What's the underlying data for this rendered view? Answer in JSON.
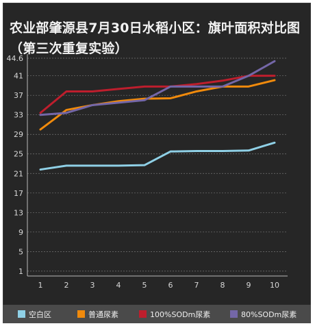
{
  "chart_data": {
    "type": "line",
    "title": "农业部肇源县7月30日水稻小区：旗叶面积对比图（第三次重复实验）",
    "xlabel": "",
    "ylabel": "",
    "x": [
      1,
      2,
      3,
      4,
      5,
      6,
      7,
      8,
      9,
      10
    ],
    "y_ticks": [
      1,
      5,
      9,
      13,
      17,
      21,
      25,
      29,
      33,
      37,
      41,
      44.6
    ],
    "ylim": [
      0,
      44.6
    ],
    "grid": true,
    "legend_position": "bottom",
    "series": [
      {
        "name": "空白区",
        "color": "#8fd0e6",
        "values": [
          21.8,
          22.6,
          22.6,
          22.6,
          22.7,
          25.5,
          25.6,
          25.6,
          25.7,
          27.3
        ]
      },
      {
        "name": "普通尿素",
        "color": "#f08a0c",
        "values": [
          30,
          34,
          35,
          35.8,
          36.3,
          36.4,
          37.8,
          38.8,
          38.8,
          40.1
        ]
      },
      {
        "name": "100%SODm尿素",
        "color": "#be1e2d",
        "values": [
          33.4,
          37.8,
          37.8,
          38.3,
          38.8,
          38.8,
          39.3,
          40,
          41,
          41
        ]
      },
      {
        "name": "80%SODm尿素",
        "color": "#7467a8",
        "values": [
          33,
          33.4,
          35,
          35.5,
          36,
          38.8,
          38.8,
          38.8,
          41,
          44
        ]
      }
    ]
  }
}
